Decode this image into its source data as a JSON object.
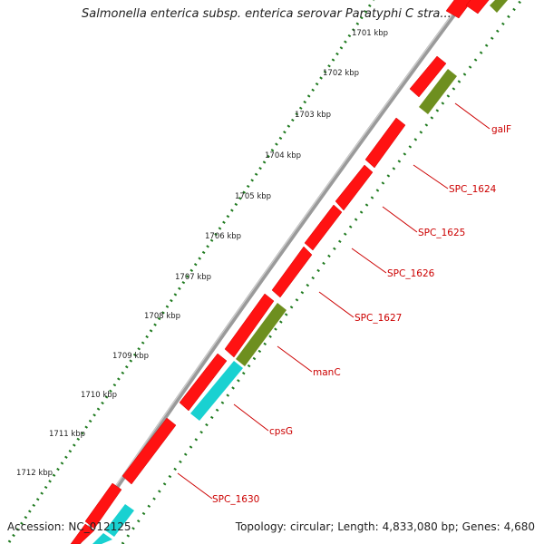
{
  "title": "Salmonella enterica subsp. enterica serovar Paratyphi C stra...",
  "footer": {
    "accession_label": "Accession:",
    "accession": "NC_012125",
    "topology_label": "Topology:",
    "topology": "circular;",
    "length_label": "Length:",
    "length": "4,833,080 bp;",
    "genes_label": "Genes:",
    "genes": "4,680"
  },
  "scale_labels": [
    "1701 kbp",
    "1702 kbp",
    "1703 kbp",
    "1704 kbp",
    "1705 kbp",
    "1706 kbp",
    "1707 kbp",
    "1708 kbp",
    "1709 kbp",
    "1710 kbp",
    "1711 kbp",
    "1712 kbp"
  ],
  "gene_labels": [
    "galF",
    "SPC_1624",
    "SPC_1625",
    "SPC_1626",
    "SPC_1627",
    "manC",
    "cpsG",
    "SPC_1630"
  ],
  "colors": {
    "backbone": "#8a8a8a",
    "cds_red": "#ff1010",
    "cds_olive": "#6e8f1f",
    "cds_cyan": "#19d1d1",
    "tick_green": "#1f7a1f",
    "label_red": "#cc0000"
  }
}
